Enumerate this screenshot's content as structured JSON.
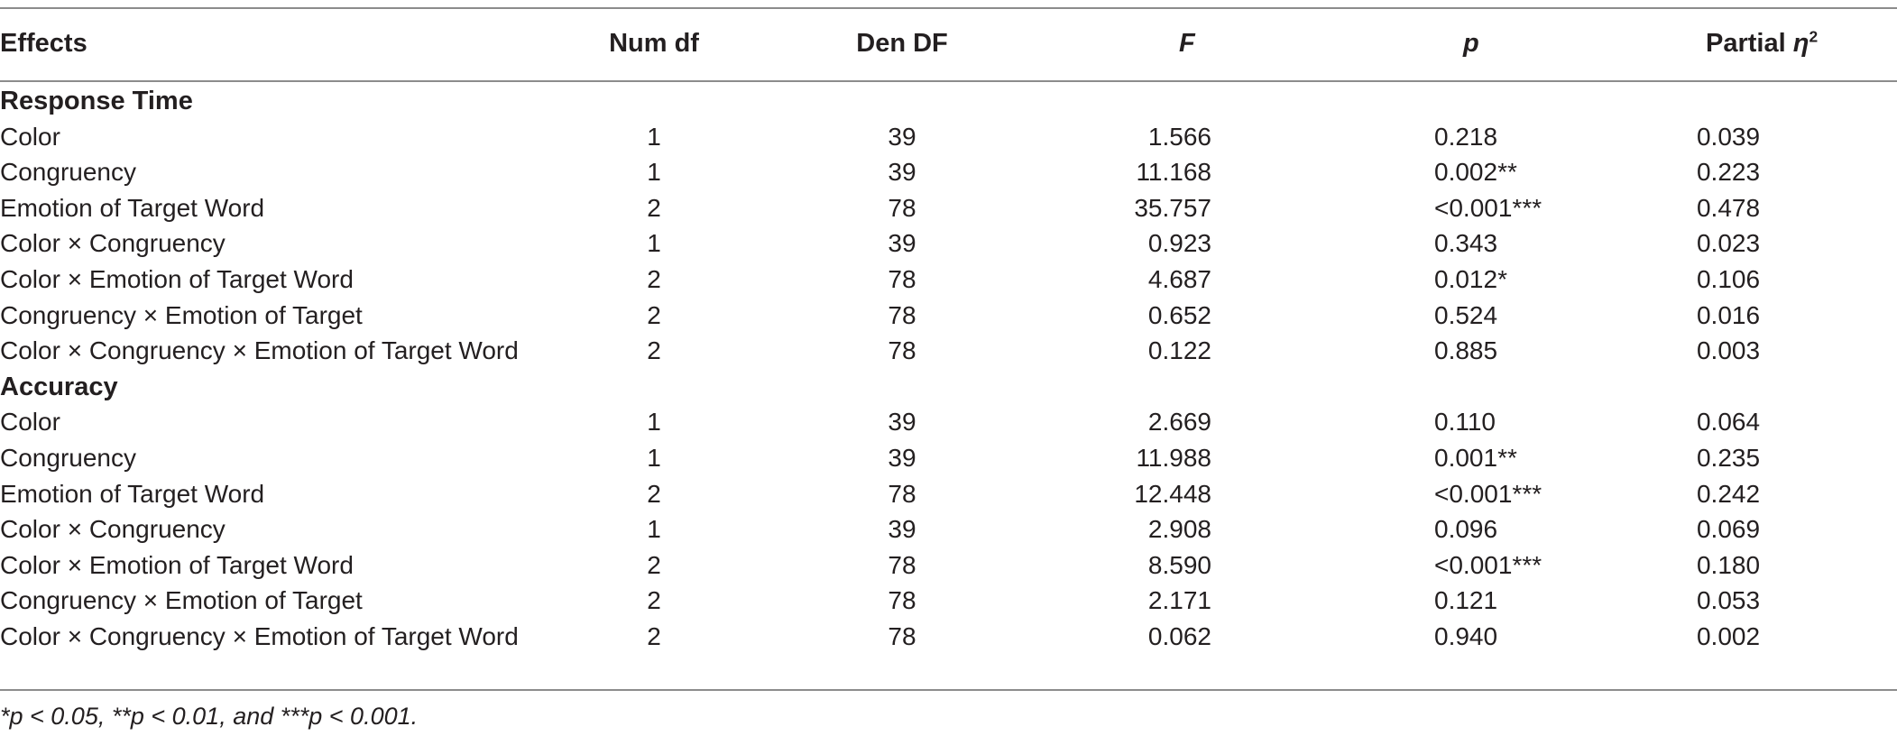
{
  "headers": {
    "effects": "Effects",
    "num_df": "Num df",
    "den_df": "Den DF",
    "f": "F",
    "p": "p",
    "eta_prefix": "Partial ",
    "eta_symbol": "η",
    "eta_sup": "2"
  },
  "sections": [
    {
      "title": "Response Time",
      "rows": [
        {
          "effect": "Color",
          "num_df": "1",
          "den_df": "39",
          "f": "1.566",
          "p": "0.218",
          "eta": "0.039"
        },
        {
          "effect": "Congruency",
          "num_df": "1",
          "den_df": "39",
          "f": "11.168",
          "p": "0.002**",
          "eta": "0.223"
        },
        {
          "effect": "Emotion of Target Word",
          "num_df": "2",
          "den_df": "78",
          "f": "35.757",
          "p": "<0.001***",
          "eta": "0.478"
        },
        {
          "effect": "Color × Congruency",
          "num_df": "1",
          "den_df": "39",
          "f": "0.923",
          "p": "0.343",
          "eta": "0.023"
        },
        {
          "effect": "Color × Emotion of Target Word",
          "num_df": "2",
          "den_df": "78",
          "f": "4.687",
          "p": "0.012*",
          "eta": "0.106"
        },
        {
          "effect": "Congruency × Emotion of Target",
          "num_df": "2",
          "den_df": "78",
          "f": "0.652",
          "p": "0.524",
          "eta": "0.016"
        },
        {
          "effect": "Color × Congruency × Emotion of Target Word",
          "num_df": "2",
          "den_df": "78",
          "f": "0.122",
          "p": "0.885",
          "eta": "0.003"
        }
      ]
    },
    {
      "title": "Accuracy",
      "rows": [
        {
          "effect": "Color",
          "num_df": "1",
          "den_df": "39",
          "f": "2.669",
          "p": "0.110",
          "eta": "0.064"
        },
        {
          "effect": "Congruency",
          "num_df": "1",
          "den_df": "39",
          "f": "11.988",
          "p": "0.001**",
          "eta": "0.235"
        },
        {
          "effect": "Emotion of Target Word",
          "num_df": "2",
          "den_df": "78",
          "f": "12.448",
          "p": "<0.001***",
          "eta": "0.242"
        },
        {
          "effect": "Color × Congruency",
          "num_df": "1",
          "den_df": "39",
          "f": "2.908",
          "p": "0.096",
          "eta": "0.069"
        },
        {
          "effect": "Color × Emotion of Target Word",
          "num_df": "2",
          "den_df": "78",
          "f": "8.590",
          "p": "<0.001***",
          "eta": "0.180"
        },
        {
          "effect": "Congruency × Emotion of Target",
          "num_df": "2",
          "den_df": "78",
          "f": "2.171",
          "p": "0.121",
          "eta": "0.053"
        },
        {
          "effect": "Color × Congruency × Emotion of Target Word",
          "num_df": "2",
          "den_df": "78",
          "f": "0.062",
          "p": "0.940",
          "eta": "0.002"
        }
      ]
    }
  ],
  "footnote": "*p < 0.05, **p < 0.01, and ***p < 0.001."
}
